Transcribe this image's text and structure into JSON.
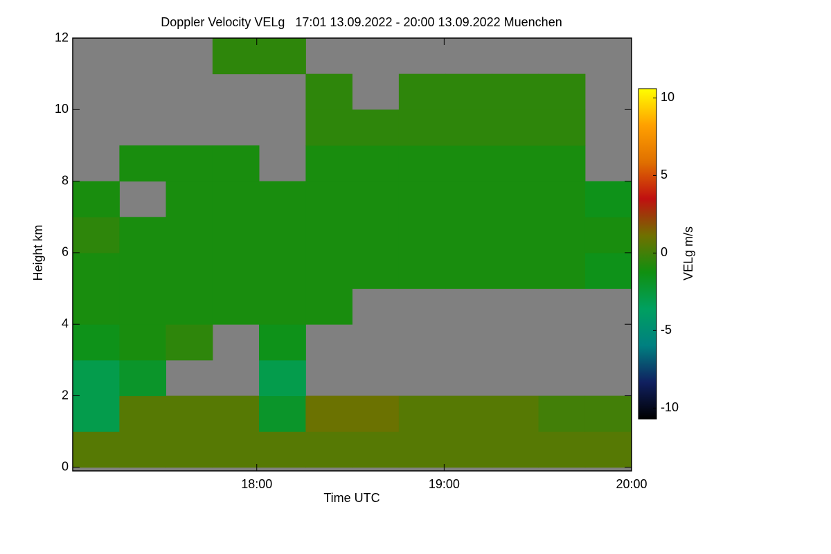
{
  "chart_data": {
    "type": "heatmap",
    "title": "Doppler Velocity VELg   17:01 13.09.2022 - 20:00 13.09.2022 Muenchen",
    "xlabel": "Time UTC",
    "ylabel": "Height km",
    "colorbar_label": "VELg m/s",
    "xlim": [
      17.018,
      20.0
    ],
    "ylim": [
      -0.1,
      12
    ],
    "xticks": [
      {
        "value": 18,
        "label": "18:00"
      },
      {
        "value": 19,
        "label": "19:00"
      },
      {
        "value": 20,
        "label": "20:00"
      }
    ],
    "yticks": [
      0,
      2,
      4,
      6,
      8,
      10,
      12
    ],
    "zlim": [
      -10.7,
      10.6
    ],
    "zticks": [
      -10,
      -5,
      0,
      5,
      10
    ],
    "colormap": [
      "#000000",
      "#102060",
      "#008080",
      "#00a060",
      "#109010",
      "#707000",
      "#c01010",
      "#e07000",
      "#ffa000",
      "#ffff00"
    ],
    "background_color": "#808080",
    "x_edges": [
      17.018,
      17.267,
      17.515,
      17.764,
      18.012,
      18.261,
      18.509,
      18.758,
      19.006,
      19.255,
      19.503,
      19.752,
      20.0
    ],
    "y_edges": [
      0,
      1,
      2,
      3,
      4,
      5,
      6,
      7,
      8,
      9,
      10,
      11,
      12
    ],
    "values": [
      [
        0.5,
        0.5,
        0.5,
        0.5,
        0.5,
        0.5,
        0.5,
        0.5,
        0.5,
        0.5,
        0.5,
        0.5
      ],
      [
        -3,
        0.5,
        0.5,
        0.5,
        -2,
        1,
        1,
        0.5,
        0.5,
        0.5,
        0,
        0
      ],
      [
        -3,
        -2,
        null,
        null,
        -3,
        null,
        null,
        null,
        null,
        null,
        null,
        null
      ],
      [
        -1.5,
        -1,
        -0.5,
        null,
        -1.5,
        null,
        null,
        null,
        null,
        null,
        null,
        null
      ],
      [
        -1,
        -1,
        -1,
        -1,
        -1,
        -1,
        null,
        null,
        null,
        null,
        null,
        null
      ],
      [
        -1,
        -1,
        -1,
        -1,
        -1,
        -1,
        -1,
        -1,
        -1,
        -1,
        -1,
        -1.5
      ],
      [
        -0.5,
        -1,
        -1,
        -1,
        -1,
        -1,
        -1,
        -1,
        -1,
        -1,
        -1,
        -1
      ],
      [
        -1,
        null,
        -1,
        -1,
        -1,
        -1,
        -1,
        -1,
        -1,
        -1,
        -1,
        -1.5
      ],
      [
        null,
        -1,
        -1,
        -1,
        null,
        -1,
        -1,
        -1,
        -1,
        -1,
        -1,
        null
      ],
      [
        null,
        null,
        null,
        null,
        null,
        -0.5,
        -0.5,
        -0.5,
        -0.5,
        -0.5,
        -0.5,
        null
      ],
      [
        null,
        null,
        null,
        null,
        null,
        -0.5,
        null,
        -0.5,
        -0.5,
        -0.5,
        -0.5,
        null
      ],
      [
        null,
        null,
        null,
        -0.5,
        -0.5,
        null,
        null,
        null,
        null,
        null,
        null,
        null
      ]
    ]
  }
}
